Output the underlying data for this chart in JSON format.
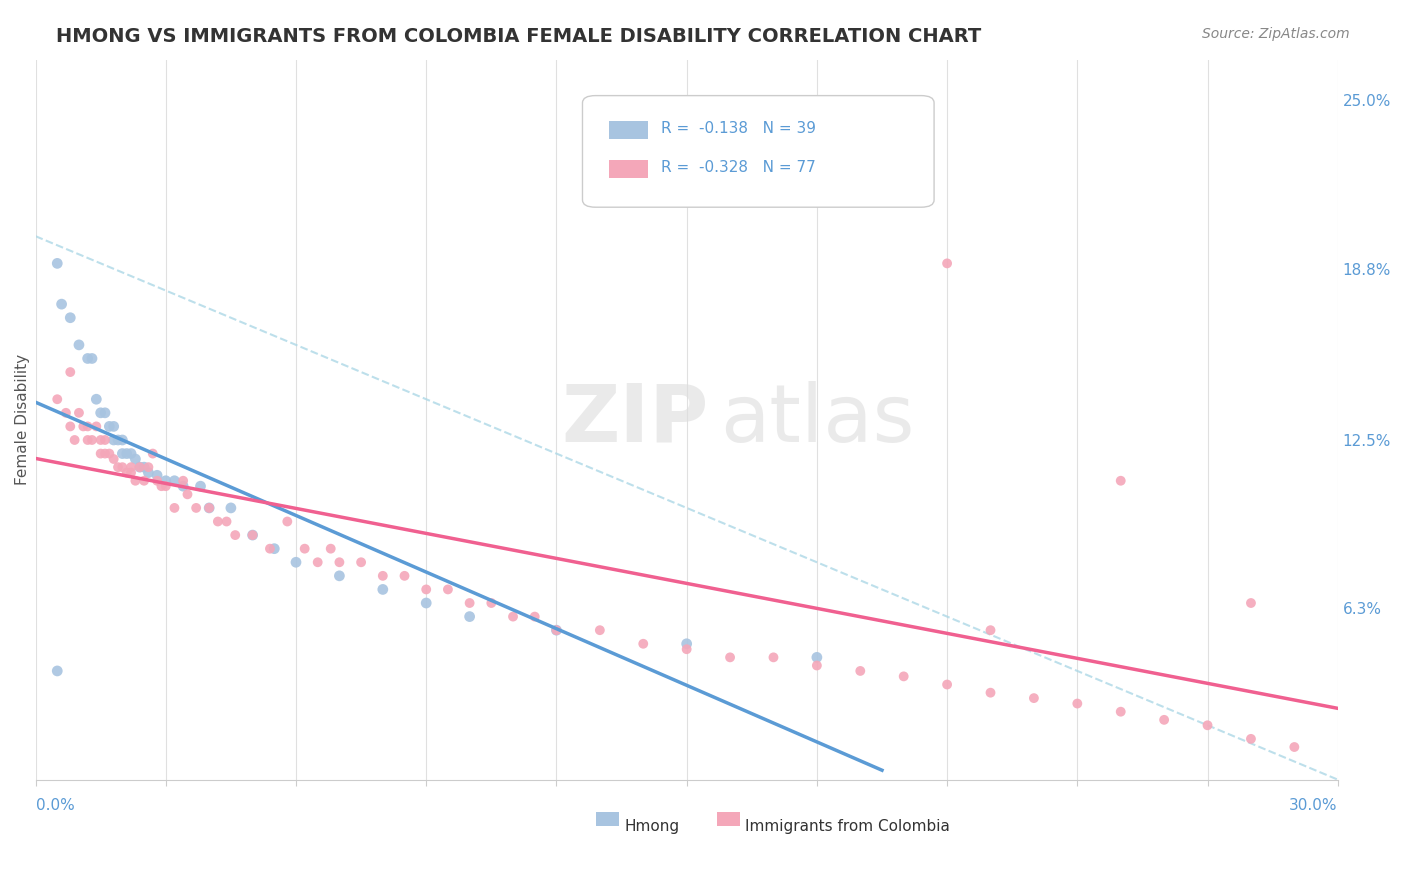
{
  "title": "HMONG VS IMMIGRANTS FROM COLOMBIA FEMALE DISABILITY CORRELATION CHART",
  "source": "Source: ZipAtlas.com",
  "ylabel": "Female Disability",
  "right_yticks": [
    0.0,
    0.063,
    0.125,
    0.188,
    0.25
  ],
  "right_yticklabels": [
    "",
    "6.3%",
    "12.5%",
    "18.8%",
    "25.0%"
  ],
  "legend1_r": "-0.138",
  "legend1_n": "39",
  "legend2_r": "-0.328",
  "legend2_n": "77",
  "hmong_color": "#a8c4e0",
  "colombia_color": "#f4a7b9",
  "hmong_line_color": "#5b9bd5",
  "colombia_line_color": "#f06090",
  "hmong_x": [
    0.005,
    0.006,
    0.008,
    0.01,
    0.012,
    0.013,
    0.014,
    0.015,
    0.016,
    0.017,
    0.018,
    0.018,
    0.019,
    0.02,
    0.02,
    0.021,
    0.022,
    0.023,
    0.024,
    0.025,
    0.026,
    0.028,
    0.03,
    0.032,
    0.034,
    0.038,
    0.04,
    0.045,
    0.05,
    0.055,
    0.06,
    0.07,
    0.08,
    0.09,
    0.1,
    0.12,
    0.15,
    0.18,
    0.005
  ],
  "hmong_y": [
    0.19,
    0.175,
    0.17,
    0.16,
    0.155,
    0.155,
    0.14,
    0.135,
    0.135,
    0.13,
    0.13,
    0.125,
    0.125,
    0.125,
    0.12,
    0.12,
    0.12,
    0.118,
    0.115,
    0.115,
    0.113,
    0.112,
    0.11,
    0.11,
    0.108,
    0.108,
    0.1,
    0.1,
    0.09,
    0.085,
    0.08,
    0.075,
    0.07,
    0.065,
    0.06,
    0.055,
    0.05,
    0.045,
    0.04
  ],
  "colombia_x": [
    0.005,
    0.007,
    0.008,
    0.008,
    0.009,
    0.01,
    0.011,
    0.012,
    0.012,
    0.013,
    0.014,
    0.015,
    0.015,
    0.016,
    0.016,
    0.017,
    0.018,
    0.019,
    0.02,
    0.021,
    0.022,
    0.022,
    0.023,
    0.024,
    0.025,
    0.026,
    0.027,
    0.028,
    0.029,
    0.03,
    0.032,
    0.034,
    0.035,
    0.037,
    0.04,
    0.042,
    0.044,
    0.046,
    0.05,
    0.054,
    0.058,
    0.062,
    0.065,
    0.068,
    0.07,
    0.075,
    0.08,
    0.085,
    0.09,
    0.095,
    0.1,
    0.105,
    0.11,
    0.115,
    0.12,
    0.13,
    0.14,
    0.15,
    0.16,
    0.17,
    0.18,
    0.19,
    0.2,
    0.21,
    0.22,
    0.23,
    0.24,
    0.25,
    0.26,
    0.27,
    0.28,
    0.29,
    0.2,
    0.21,
    0.25,
    0.28,
    0.22
  ],
  "colombia_y": [
    0.14,
    0.135,
    0.15,
    0.13,
    0.125,
    0.135,
    0.13,
    0.13,
    0.125,
    0.125,
    0.13,
    0.125,
    0.12,
    0.125,
    0.12,
    0.12,
    0.118,
    0.115,
    0.115,
    0.113,
    0.115,
    0.113,
    0.11,
    0.115,
    0.11,
    0.115,
    0.12,
    0.11,
    0.108,
    0.108,
    0.1,
    0.11,
    0.105,
    0.1,
    0.1,
    0.095,
    0.095,
    0.09,
    0.09,
    0.085,
    0.095,
    0.085,
    0.08,
    0.085,
    0.08,
    0.08,
    0.075,
    0.075,
    0.07,
    0.07,
    0.065,
    0.065,
    0.06,
    0.06,
    0.055,
    0.055,
    0.05,
    0.048,
    0.045,
    0.045,
    0.042,
    0.04,
    0.038,
    0.035,
    0.032,
    0.03,
    0.028,
    0.025,
    0.022,
    0.02,
    0.015,
    0.012,
    0.245,
    0.19,
    0.11,
    0.065,
    0.055
  ],
  "xmin": 0.0,
  "xmax": 0.3,
  "ymin": 0.0,
  "ymax": 0.265
}
